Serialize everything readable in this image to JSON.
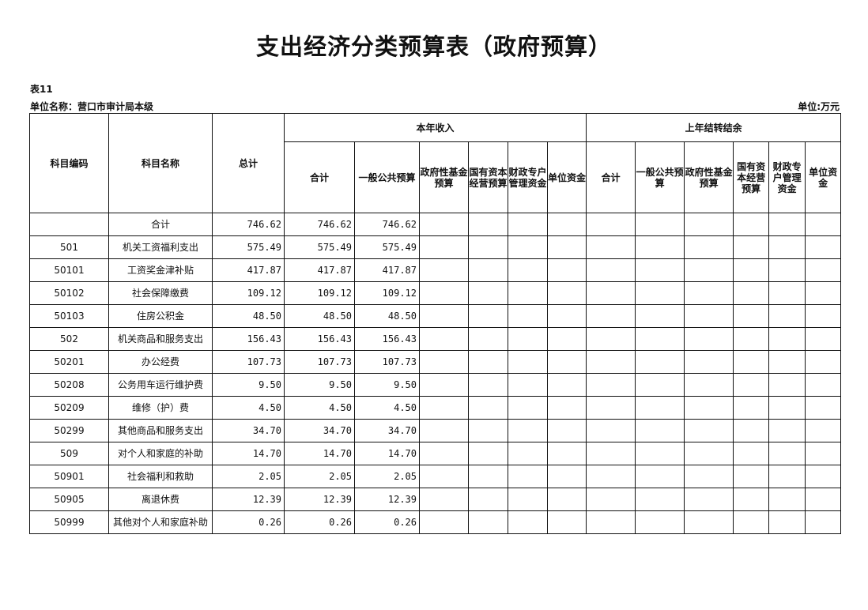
{
  "title": "支出经济分类预算表（政府预算）",
  "table_no": "表11",
  "unit_name": "单位名称：营口市审计局本级",
  "unit": "单位:万元",
  "headers": {
    "code": "科目编码",
    "name": "科目名称",
    "total": "总计",
    "current_year": "本年收入",
    "prior_year": "上年结转结余",
    "current_cols": [
      "合计",
      "一般公共预算",
      "政府性基金预算",
      "国有资本经营预算",
      "财政专户管理资金",
      "单位资金"
    ],
    "prior_cols": [
      "合计",
      "一般公共预算",
      "政府性基金预算",
      "国有资本经营预算",
      "财政专户管理资金",
      "单位资金"
    ]
  },
  "rows": [
    {
      "code": "",
      "name": "合计",
      "total": "746.62",
      "cy_total": "746.62",
      "cy_general": "746.62"
    },
    {
      "code": "501",
      "name": "机关工资福利支出",
      "total": "575.49",
      "cy_total": "575.49",
      "cy_general": "575.49"
    },
    {
      "code": "50101",
      "name": "工资奖金津补贴",
      "total": "417.87",
      "cy_total": "417.87",
      "cy_general": "417.87"
    },
    {
      "code": "50102",
      "name": "社会保障缴费",
      "total": "109.12",
      "cy_total": "109.12",
      "cy_general": "109.12"
    },
    {
      "code": "50103",
      "name": "住房公积金",
      "total": "48.50",
      "cy_total": "48.50",
      "cy_general": "48.50"
    },
    {
      "code": "502",
      "name": "机关商品和服务支出",
      "total": "156.43",
      "cy_total": "156.43",
      "cy_general": "156.43"
    },
    {
      "code": "50201",
      "name": "办公经费",
      "total": "107.73",
      "cy_total": "107.73",
      "cy_general": "107.73"
    },
    {
      "code": "50208",
      "name": "公务用车运行维护费",
      "total": "9.50",
      "cy_total": "9.50",
      "cy_general": "9.50"
    },
    {
      "code": "50209",
      "name": "维修（护）费",
      "total": "4.50",
      "cy_total": "4.50",
      "cy_general": "4.50"
    },
    {
      "code": "50299",
      "name": "其他商品和服务支出",
      "total": "34.70",
      "cy_total": "34.70",
      "cy_general": "34.70"
    },
    {
      "code": "509",
      "name": "对个人和家庭的补助",
      "total": "14.70",
      "cy_total": "14.70",
      "cy_general": "14.70"
    },
    {
      "code": "50901",
      "name": "社会福利和救助",
      "total": "2.05",
      "cy_total": "2.05",
      "cy_general": "2.05"
    },
    {
      "code": "50905",
      "name": "离退休费",
      "total": "12.39",
      "cy_total": "12.39",
      "cy_general": "12.39"
    },
    {
      "code": "50999",
      "name": "其他对个人和家庭补助",
      "total": "0.26",
      "cy_total": "0.26",
      "cy_general": "0.26"
    }
  ]
}
